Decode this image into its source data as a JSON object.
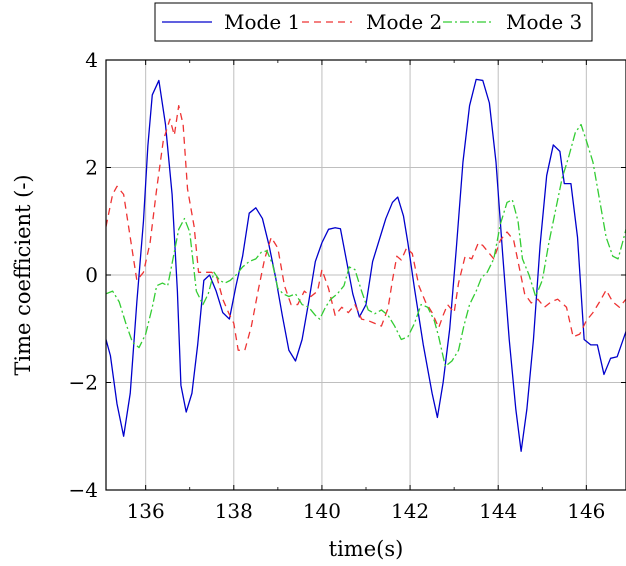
{
  "chart_data": {
    "type": "line",
    "xlabel": "time(s)",
    "ylabel": "Time coefficient (-)",
    "xlim": [
      135.1,
      146.9
    ],
    "ylim": [
      -4,
      4
    ],
    "x_ticks": [
      {
        "value": 136,
        "label": "136"
      },
      {
        "value": 138,
        "label": "138"
      },
      {
        "value": 140,
        "label": "140"
      },
      {
        "value": 142,
        "label": "142"
      },
      {
        "value": 144,
        "label": "144"
      },
      {
        "value": 146,
        "label": "146"
      }
    ],
    "y_ticks": [
      {
        "value": -4,
        "label": "−4"
      },
      {
        "value": -2,
        "label": "−2"
      },
      {
        "value": 0,
        "label": "0"
      },
      {
        "value": 2,
        "label": "2"
      },
      {
        "value": 4,
        "label": "4"
      }
    ],
    "grid": true,
    "legend_position": "top",
    "series": [
      {
        "name": "Mode 1",
        "color": "#0000cc",
        "dash": "solid",
        "points": [
          [
            135.1,
            -1.2
          ],
          [
            135.2,
            -1.5
          ],
          [
            135.35,
            -2.4
          ],
          [
            135.5,
            -3.0
          ],
          [
            135.65,
            -2.2
          ],
          [
            135.8,
            -0.5
          ],
          [
            135.95,
            1.0
          ],
          [
            136.05,
            2.4
          ],
          [
            136.15,
            3.35
          ],
          [
            136.3,
            3.62
          ],
          [
            136.45,
            2.8
          ],
          [
            136.6,
            1.5
          ],
          [
            136.72,
            -0.3
          ],
          [
            136.8,
            -2.05
          ],
          [
            136.92,
            -2.55
          ],
          [
            137.05,
            -2.2
          ],
          [
            137.18,
            -1.3
          ],
          [
            137.32,
            -0.1
          ],
          [
            137.45,
            0.0
          ],
          [
            137.6,
            -0.3
          ],
          [
            137.75,
            -0.7
          ],
          [
            137.9,
            -0.82
          ],
          [
            138.05,
            -0.2
          ],
          [
            138.2,
            0.35
          ],
          [
            138.35,
            1.15
          ],
          [
            138.5,
            1.25
          ],
          [
            138.65,
            1.05
          ],
          [
            138.8,
            0.55
          ],
          [
            138.95,
            -0.05
          ],
          [
            139.1,
            -0.75
          ],
          [
            139.25,
            -1.4
          ],
          [
            139.4,
            -1.6
          ],
          [
            139.55,
            -1.2
          ],
          [
            139.7,
            -0.5
          ],
          [
            139.85,
            0.25
          ],
          [
            140.0,
            0.6
          ],
          [
            140.15,
            0.85
          ],
          [
            140.3,
            0.88
          ],
          [
            140.42,
            0.86
          ],
          [
            140.55,
            0.3
          ],
          [
            140.7,
            -0.35
          ],
          [
            140.85,
            -0.78
          ],
          [
            141.0,
            -0.55
          ],
          [
            141.15,
            0.25
          ],
          [
            141.3,
            0.65
          ],
          [
            141.45,
            1.05
          ],
          [
            141.6,
            1.35
          ],
          [
            141.72,
            1.45
          ],
          [
            141.85,
            1.1
          ],
          [
            141.95,
            0.6
          ],
          [
            142.1,
            -0.25
          ],
          [
            142.3,
            -1.3
          ],
          [
            142.5,
            -2.2
          ],
          [
            142.62,
            -2.65
          ],
          [
            142.75,
            -2.0
          ],
          [
            142.9,
            -1.0
          ],
          [
            143.05,
            0.5
          ],
          [
            143.2,
            2.1
          ],
          [
            143.35,
            3.15
          ],
          [
            143.5,
            3.64
          ],
          [
            143.65,
            3.62
          ],
          [
            143.8,
            3.2
          ],
          [
            143.95,
            2.1
          ],
          [
            144.1,
            0.4
          ],
          [
            144.25,
            -1.2
          ],
          [
            144.4,
            -2.5
          ],
          [
            144.52,
            -3.28
          ],
          [
            144.65,
            -2.5
          ],
          [
            144.8,
            -1.2
          ],
          [
            144.95,
            0.55
          ],
          [
            145.1,
            1.85
          ],
          [
            145.25,
            2.42
          ],
          [
            145.4,
            2.3
          ],
          [
            145.5,
            1.7
          ],
          [
            145.65,
            1.7
          ],
          [
            145.8,
            0.7
          ],
          [
            145.95,
            -1.2
          ],
          [
            146.1,
            -1.3
          ],
          [
            146.25,
            -1.3
          ],
          [
            146.4,
            -1.85
          ],
          [
            146.55,
            -1.55
          ],
          [
            146.7,
            -1.52
          ],
          [
            146.9,
            -1.05
          ]
        ]
      },
      {
        "name": "Mode 2",
        "color": "#ee3333",
        "dash": "7,5",
        "points": [
          [
            135.1,
            0.9
          ],
          [
            135.25,
            1.5
          ],
          [
            135.35,
            1.65
          ],
          [
            135.5,
            1.5
          ],
          [
            135.65,
            0.7
          ],
          [
            135.8,
            -0.1
          ],
          [
            135.95,
            0.05
          ],
          [
            136.1,
            0.6
          ],
          [
            136.25,
            1.6
          ],
          [
            136.4,
            2.5
          ],
          [
            136.55,
            2.9
          ],
          [
            136.65,
            2.6
          ],
          [
            136.75,
            3.15
          ],
          [
            136.85,
            2.8
          ],
          [
            136.95,
            1.6
          ],
          [
            137.1,
            0.9
          ],
          [
            137.2,
            0.05
          ],
          [
            137.35,
            0.05
          ],
          [
            137.5,
            0.05
          ],
          [
            137.62,
            -0.05
          ],
          [
            137.75,
            -0.45
          ],
          [
            137.88,
            -0.7
          ],
          [
            138.0,
            -0.9
          ],
          [
            138.1,
            -1.4
          ],
          [
            138.25,
            -1.4
          ],
          [
            138.4,
            -0.95
          ],
          [
            138.55,
            -0.3
          ],
          [
            138.7,
            0.3
          ],
          [
            138.85,
            0.7
          ],
          [
            139.0,
            0.5
          ],
          [
            139.15,
            -0.2
          ],
          [
            139.3,
            -0.55
          ],
          [
            139.45,
            -0.55
          ],
          [
            139.6,
            -0.3
          ],
          [
            139.75,
            -0.4
          ],
          [
            139.9,
            -0.3
          ],
          [
            140.0,
            0.1
          ],
          [
            140.15,
            -0.25
          ],
          [
            140.3,
            -0.75
          ],
          [
            140.45,
            -0.6
          ],
          [
            140.6,
            -0.7
          ],
          [
            140.75,
            -0.55
          ],
          [
            140.9,
            -0.82
          ],
          [
            141.05,
            -0.85
          ],
          [
            141.2,
            -0.9
          ],
          [
            141.35,
            -0.95
          ],
          [
            141.5,
            -0.62
          ],
          [
            141.6,
            -0.1
          ],
          [
            141.7,
            0.35
          ],
          [
            141.8,
            0.28
          ],
          [
            141.92,
            0.5
          ],
          [
            142.05,
            0.4
          ],
          [
            142.2,
            -0.2
          ],
          [
            142.35,
            -0.5
          ],
          [
            142.5,
            -0.7
          ],
          [
            142.65,
            -0.98
          ],
          [
            142.75,
            -0.75
          ],
          [
            142.85,
            -0.55
          ],
          [
            143.0,
            -0.7
          ],
          [
            143.1,
            -0.15
          ],
          [
            143.25,
            0.35
          ],
          [
            143.4,
            0.3
          ],
          [
            143.55,
            0.6
          ],
          [
            143.65,
            0.55
          ],
          [
            143.8,
            0.4
          ],
          [
            143.9,
            0.3
          ],
          [
            144.05,
            0.65
          ],
          [
            144.2,
            0.8
          ],
          [
            144.35,
            0.65
          ],
          [
            144.5,
            0.05
          ],
          [
            144.6,
            -0.35
          ],
          [
            144.75,
            -0.52
          ],
          [
            144.9,
            -0.45
          ],
          [
            145.05,
            -0.6
          ],
          [
            145.2,
            -0.5
          ],
          [
            145.35,
            -0.45
          ],
          [
            145.55,
            -0.6
          ],
          [
            145.7,
            -1.15
          ],
          [
            145.85,
            -1.1
          ],
          [
            146.0,
            -0.85
          ],
          [
            146.15,
            -0.7
          ],
          [
            146.3,
            -0.5
          ],
          [
            146.45,
            -0.28
          ],
          [
            146.6,
            -0.5
          ],
          [
            146.75,
            -0.6
          ],
          [
            146.9,
            -0.45
          ]
        ]
      },
      {
        "name": "Mode 3",
        "color": "#33cc33",
        "dash": "9,3,2,3",
        "points": [
          [
            135.1,
            -0.35
          ],
          [
            135.25,
            -0.3
          ],
          [
            135.4,
            -0.5
          ],
          [
            135.55,
            -0.9
          ],
          [
            135.7,
            -1.25
          ],
          [
            135.85,
            -1.35
          ],
          [
            136.0,
            -1.1
          ],
          [
            136.15,
            -0.6
          ],
          [
            136.25,
            -0.2
          ],
          [
            136.38,
            -0.15
          ],
          [
            136.5,
            -0.2
          ],
          [
            136.62,
            0.3
          ],
          [
            136.75,
            0.85
          ],
          [
            136.88,
            1.05
          ],
          [
            137.0,
            0.8
          ],
          [
            137.15,
            -0.3
          ],
          [
            137.3,
            -0.55
          ],
          [
            137.42,
            -0.35
          ],
          [
            137.55,
            0.05
          ],
          [
            137.68,
            -0.1
          ],
          [
            137.8,
            -0.15
          ],
          [
            137.92,
            -0.1
          ],
          [
            138.05,
            0.0
          ],
          [
            138.2,
            0.15
          ],
          [
            138.35,
            0.25
          ],
          [
            138.5,
            0.3
          ],
          [
            138.62,
            0.42
          ],
          [
            138.75,
            0.45
          ],
          [
            138.88,
            0.2
          ],
          [
            139.0,
            -0.25
          ],
          [
            139.12,
            -0.35
          ],
          [
            139.25,
            -0.4
          ],
          [
            139.4,
            -0.35
          ],
          [
            139.55,
            -0.55
          ],
          [
            139.7,
            -0.6
          ],
          [
            139.85,
            -0.75
          ],
          [
            139.95,
            -0.82
          ],
          [
            140.08,
            -0.6
          ],
          [
            140.2,
            -0.45
          ],
          [
            140.35,
            -0.35
          ],
          [
            140.5,
            -0.2
          ],
          [
            140.62,
            0.15
          ],
          [
            140.75,
            0.1
          ],
          [
            140.9,
            -0.3
          ],
          [
            141.05,
            -0.65
          ],
          [
            141.2,
            -0.72
          ],
          [
            141.35,
            -0.65
          ],
          [
            141.5,
            -0.75
          ],
          [
            141.65,
            -0.95
          ],
          [
            141.8,
            -1.2
          ],
          [
            141.95,
            -1.15
          ],
          [
            142.1,
            -0.9
          ],
          [
            142.25,
            -0.55
          ],
          [
            142.4,
            -0.6
          ],
          [
            142.55,
            -0.85
          ],
          [
            142.65,
            -1.15
          ],
          [
            142.8,
            -1.7
          ],
          [
            142.95,
            -1.6
          ],
          [
            143.1,
            -1.4
          ],
          [
            143.22,
            -0.95
          ],
          [
            143.35,
            -0.55
          ],
          [
            143.5,
            -0.3
          ],
          [
            143.62,
            -0.05
          ],
          [
            143.75,
            0.05
          ],
          [
            143.9,
            0.3
          ],
          [
            144.05,
            0.95
          ],
          [
            144.2,
            1.35
          ],
          [
            144.32,
            1.4
          ],
          [
            144.45,
            1.0
          ],
          [
            144.55,
            0.3
          ],
          [
            144.7,
            0.0
          ],
          [
            144.85,
            -0.4
          ],
          [
            145.0,
            -0.1
          ],
          [
            145.15,
            0.6
          ],
          [
            145.3,
            1.2
          ],
          [
            145.45,
            1.8
          ],
          [
            145.6,
            2.2
          ],
          [
            145.75,
            2.65
          ],
          [
            145.88,
            2.8
          ],
          [
            146.0,
            2.5
          ],
          [
            146.15,
            2.1
          ],
          [
            146.3,
            1.4
          ],
          [
            146.45,
            0.7
          ],
          [
            146.6,
            0.35
          ],
          [
            146.72,
            0.3
          ],
          [
            146.82,
            0.6
          ],
          [
            146.9,
            0.85
          ]
        ]
      }
    ]
  }
}
